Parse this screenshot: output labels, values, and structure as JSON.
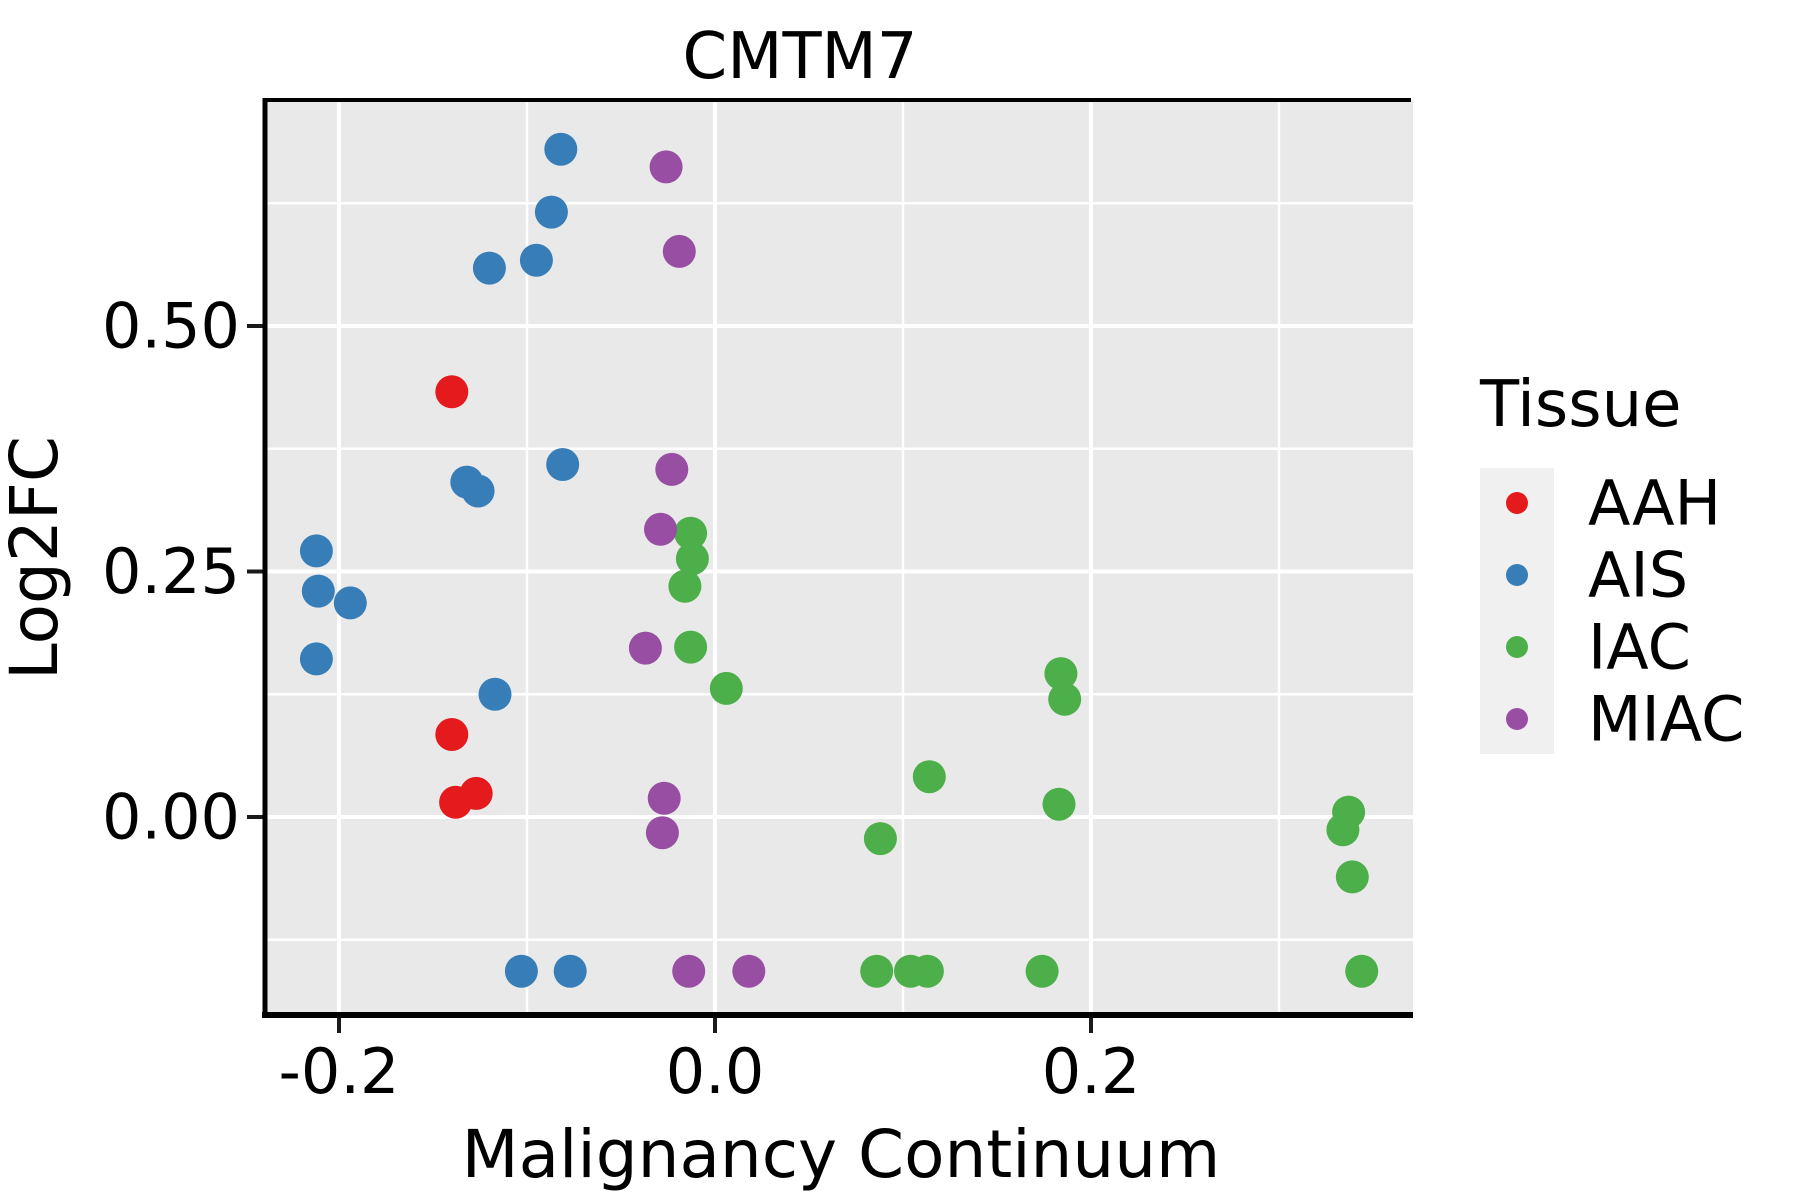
{
  "title": "CMTM7",
  "axes": {
    "x_label": "Malignancy Continuum",
    "y_label": "Log2FC",
    "x_ticks": [
      "-0.2",
      "0.0",
      "0.2"
    ],
    "y_ticks": [
      "0.00",
      "0.25",
      "0.50"
    ]
  },
  "legend": {
    "title": "Tissue",
    "items": [
      {
        "label": "AAH",
        "color": "#E41A1C"
      },
      {
        "label": "AIS",
        "color": "#377EB8"
      },
      {
        "label": "IAC",
        "color": "#4DAF4A"
      },
      {
        "label": "MIAC",
        "color": "#984EA3"
      }
    ]
  },
  "colors": {
    "panel_bg": "#E9E9E9",
    "grid": "#FFFFFF",
    "spine": "#000000",
    "tick": "#1a1a1a",
    "legend_key_bg": "#F0F0F0"
  },
  "chart_data": {
    "type": "scatter",
    "title": "CMTM7",
    "xlabel": "Malignancy Continuum",
    "ylabel": "Log2FC",
    "xlim": [
      -0.239,
      0.371
    ],
    "ylim": [
      -0.202,
      0.73
    ],
    "x_tick_values": [
      -0.2,
      0.0,
      0.2
    ],
    "y_tick_values": [
      0.0,
      0.25,
      0.5
    ],
    "x_minor_gridlines": [
      -0.1,
      0.1,
      0.3
    ],
    "y_minor_gridlines": [
      -0.125,
      0.125,
      0.375,
      0.625
    ],
    "grid": "white major+minor gridlines on gray panel",
    "legend_position": "right",
    "series": [
      {
        "name": "AAH",
        "color": "#E41A1C",
        "points": [
          [
            -0.14,
            0.433
          ],
          [
            -0.14,
            0.084
          ],
          [
            -0.127,
            0.024
          ],
          [
            -0.138,
            0.015
          ]
        ]
      },
      {
        "name": "AIS",
        "color": "#377EB8",
        "points": [
          [
            -0.082,
            0.68
          ],
          [
            -0.087,
            0.616
          ],
          [
            -0.095,
            0.567
          ],
          [
            -0.12,
            0.559
          ],
          [
            -0.081,
            0.359
          ],
          [
            -0.132,
            0.341
          ],
          [
            -0.126,
            0.332
          ],
          [
            -0.212,
            0.271
          ],
          [
            -0.211,
            0.23
          ],
          [
            -0.194,
            0.218
          ],
          [
            -0.212,
            0.161
          ],
          [
            -0.117,
            0.125
          ],
          [
            -0.103,
            -0.157
          ],
          [
            -0.077,
            -0.157
          ]
        ]
      },
      {
        "name": "IAC",
        "color": "#4DAF4A",
        "points": [
          [
            -0.013,
            0.289
          ],
          [
            -0.012,
            0.263
          ],
          [
            -0.016,
            0.235
          ],
          [
            -0.013,
            0.173
          ],
          [
            0.006,
            0.131
          ],
          [
            0.184,
            0.146
          ],
          [
            0.186,
            0.12
          ],
          [
            0.114,
            0.041
          ],
          [
            0.183,
            0.013
          ],
          [
            0.088,
            -0.022
          ],
          [
            0.337,
            0.005
          ],
          [
            0.334,
            -0.013
          ],
          [
            0.339,
            -0.061
          ],
          [
            0.086,
            -0.157
          ],
          [
            0.104,
            -0.157
          ],
          [
            0.113,
            -0.157
          ],
          [
            0.174,
            -0.157
          ],
          [
            0.344,
            -0.157
          ]
        ]
      },
      {
        "name": "MIAC",
        "color": "#984EA3",
        "points": [
          [
            -0.026,
            0.662
          ],
          [
            -0.019,
            0.576
          ],
          [
            -0.023,
            0.354
          ],
          [
            -0.029,
            0.293
          ],
          [
            -0.037,
            0.172
          ],
          [
            -0.027,
            0.019
          ],
          [
            -0.028,
            -0.016
          ],
          [
            -0.014,
            -0.157
          ],
          [
            0.018,
            -0.157
          ]
        ]
      }
    ]
  }
}
